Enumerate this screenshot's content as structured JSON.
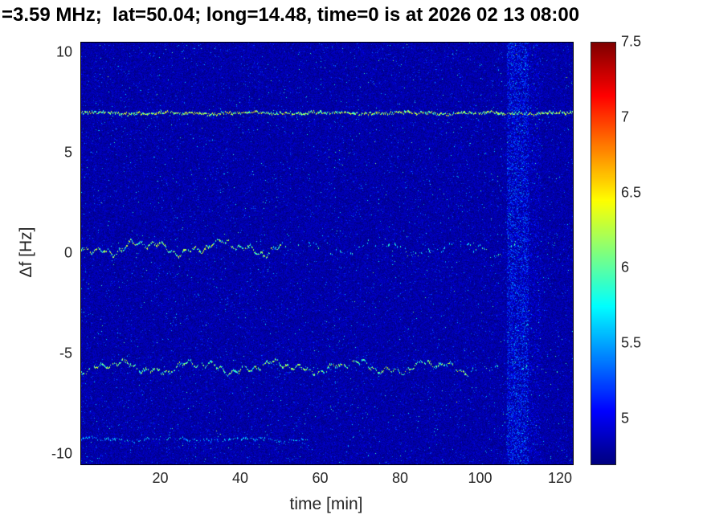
{
  "figure": {
    "title": "=3.59 MHz;  lat=50.04; long=14.48, time=0 is at 2026 02 13 08:00"
  },
  "chart_data": {
    "type": "heatmap",
    "subtype": "doppler-spectrogram",
    "title": "=3.59 MHz;  lat=50.04; long=14.48, time=0 is at 2026 02 13 08:00",
    "xlabel": "time [min]",
    "ylabel": "Δf [Hz]",
    "xlim": [
      0,
      123
    ],
    "ylim": [
      -10.5,
      10.5
    ],
    "xticks": [
      20,
      40,
      60,
      80,
      100,
      120
    ],
    "yticks": [
      -10,
      -5,
      0,
      5,
      10
    ],
    "colorbar": {
      "min": 4.7,
      "max": 7.5,
      "ticks": [
        5,
        5.5,
        6,
        6.5,
        7,
        7.5
      ],
      "colormap": "jet",
      "position": "right"
    },
    "grid": false,
    "background_level": 4.78,
    "noise": {
      "speckle_prob": 0.03,
      "speckle_max": 0.55,
      "bright_prob": 0.004,
      "bright_max": 0.9
    },
    "vertical_bands": [
      {
        "t0": 106.5,
        "t1": 112,
        "extra": 0.6,
        "prob": 0.45
      },
      {
        "t0": 112,
        "t1": 115,
        "extra": 0.35,
        "prob": 0.18
      }
    ],
    "traces": [
      {
        "label": "constant interference line at +7 Hz",
        "df": 7.0,
        "wiggle": 0.06,
        "segments": [
          {
            "t0": 0,
            "t1": 123,
            "density": 0.93,
            "vmin": 6.0,
            "vmax": 6.6
          }
        ]
      },
      {
        "label": "main doppler trace near +0.3 Hz",
        "df": 0.3,
        "wiggle": 0.45,
        "segments": [
          {
            "t0": 0,
            "t1": 50,
            "density": 0.85,
            "vmin": 5.8,
            "vmax": 6.6
          },
          {
            "t0": 50,
            "t1": 110,
            "density": 0.22,
            "vmin": 5.6,
            "vmax": 6.2
          }
        ]
      },
      {
        "label": "doppler trace near -5.7 Hz",
        "df": -5.65,
        "wiggle": 0.4,
        "segments": [
          {
            "t0": 0,
            "t1": 97,
            "density": 0.8,
            "vmin": 5.8,
            "vmax": 6.5
          },
          {
            "t0": 97,
            "t1": 120,
            "density": 0.18,
            "vmin": 5.6,
            "vmax": 6.1
          }
        ]
      },
      {
        "label": "faint trace near -9.3 Hz",
        "df": -9.25,
        "wiggle": 0.12,
        "segments": [
          {
            "t0": 0,
            "t1": 57,
            "density": 0.45,
            "vmin": 5.4,
            "vmax": 5.9
          }
        ]
      }
    ]
  }
}
